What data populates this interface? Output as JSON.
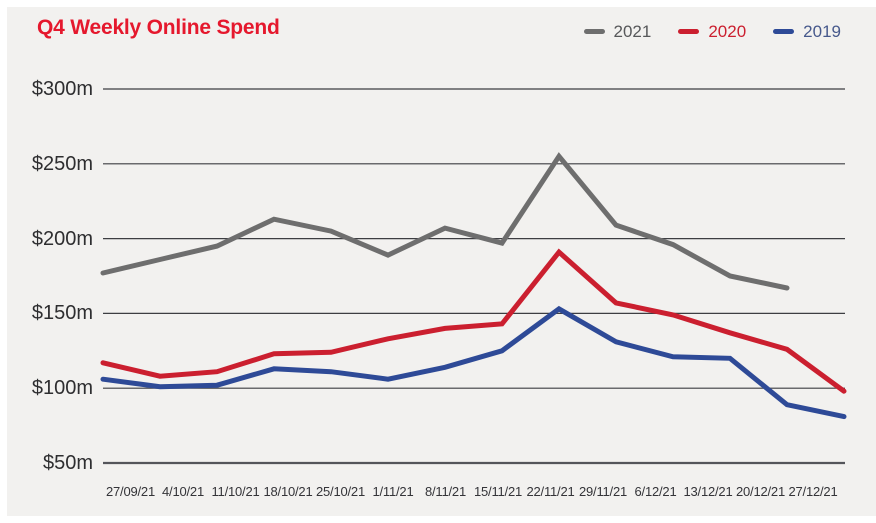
{
  "page": {
    "background": "#ffffff",
    "card_background": "#f2f1ef"
  },
  "chart": {
    "title": "Q4 Weekly Online Spend",
    "title_color": "#e5182d"
  },
  "chart_data": {
    "type": "line",
    "title": "Q4 Weekly Online Spend",
    "unit": "$m",
    "grid": true,
    "legend_position": "top-right",
    "ylim": [
      50,
      300
    ],
    "yticks": [
      {
        "value": 300,
        "label": "$300m"
      },
      {
        "value": 250,
        "label": "$250m"
      },
      {
        "value": 200,
        "label": "$200m"
      },
      {
        "value": 150,
        "label": "$150m"
      },
      {
        "value": 100,
        "label": "$100m"
      },
      {
        "value": 50,
        "label": "$50m"
      }
    ],
    "categories": [
      "27/09/21",
      "4/10/21",
      "11/10/21",
      "18/10/21",
      "25/10/21",
      "1/11/21",
      "8/11/21",
      "15/11/21",
      "22/11/21",
      "29/11/21",
      "6/12/21",
      "13/12/21",
      "20/12/21",
      "27/12/21"
    ],
    "series": [
      {
        "name": "2021",
        "color": "#6e6e6e",
        "label_color": "#57585a",
        "values": [
          177,
          186,
          195,
          213,
          205,
          189,
          207,
          197,
          255,
          209,
          196,
          175,
          167
        ]
      },
      {
        "name": "2020",
        "color": "#cb1f2f",
        "label_color": "#cb1f2f",
        "values": [
          117,
          108,
          111,
          123,
          124,
          133,
          140,
          143,
          191,
          157,
          149,
          137,
          126,
          98
        ]
      },
      {
        "name": "2019",
        "color": "#2e4a97",
        "label_color": "#47598c",
        "values": [
          106,
          101,
          102,
          113,
          111,
          106,
          114,
          125,
          153,
          131,
          121,
          120,
          89,
          81
        ]
      }
    ]
  }
}
